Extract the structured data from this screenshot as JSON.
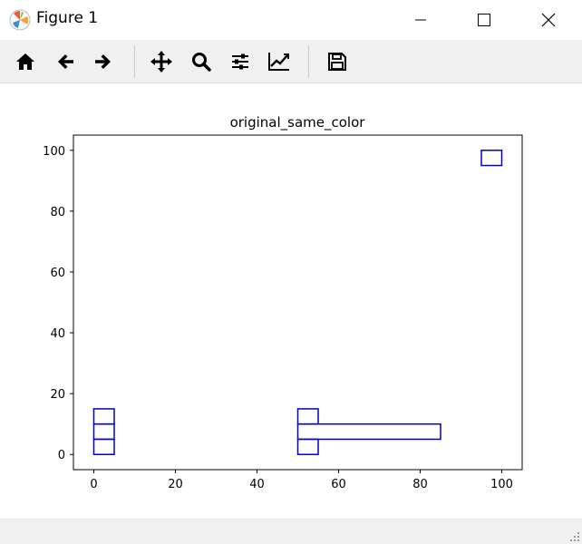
{
  "window": {
    "title": "Figure 1",
    "controls": {
      "minimize_icon": "minimize-icon",
      "maximize_icon": "maximize-icon",
      "close_icon": "close-icon"
    }
  },
  "toolbar": {
    "buttons": [
      {
        "name": "home-button",
        "icon": "home-icon"
      },
      {
        "name": "back-button",
        "icon": "arrow-left-icon"
      },
      {
        "name": "forward-button",
        "icon": "arrow-right-icon"
      },
      {
        "name": "pan-button",
        "icon": "move-icon"
      },
      {
        "name": "zoom-button",
        "icon": "magnifier-icon"
      },
      {
        "name": "subplots-button",
        "icon": "sliders-icon"
      },
      {
        "name": "edit-axis-button",
        "icon": "line-chart-icon"
      },
      {
        "name": "save-button",
        "icon": "floppy-disk-icon"
      }
    ]
  },
  "status": {
    "text": ""
  },
  "colors": {
    "rect_edge": "#0000cc",
    "axes": "#000000",
    "toolbar_bg": "#f0f0f0"
  },
  "chart_data": {
    "type": "rectangles",
    "title": "original_same_color",
    "xlabel": "",
    "ylabel": "",
    "xlim": [
      -5,
      105
    ],
    "ylim": [
      -5,
      105
    ],
    "xticks": [
      0,
      20,
      40,
      60,
      80,
      100
    ],
    "yticks": [
      0,
      20,
      40,
      60,
      80,
      100
    ],
    "grid": false,
    "rects": [
      {
        "x": 0,
        "y": 0,
        "w": 5,
        "h": 5
      },
      {
        "x": 0,
        "y": 5,
        "w": 5,
        "h": 5
      },
      {
        "x": 0,
        "y": 10,
        "w": 5,
        "h": 5
      },
      {
        "x": 50,
        "y": 0,
        "w": 5,
        "h": 5
      },
      {
        "x": 50,
        "y": 10,
        "w": 5,
        "h": 5
      },
      {
        "x": 50,
        "y": 5,
        "w": 35,
        "h": 5
      },
      {
        "x": 95,
        "y": 95,
        "w": 5,
        "h": 5
      }
    ]
  }
}
